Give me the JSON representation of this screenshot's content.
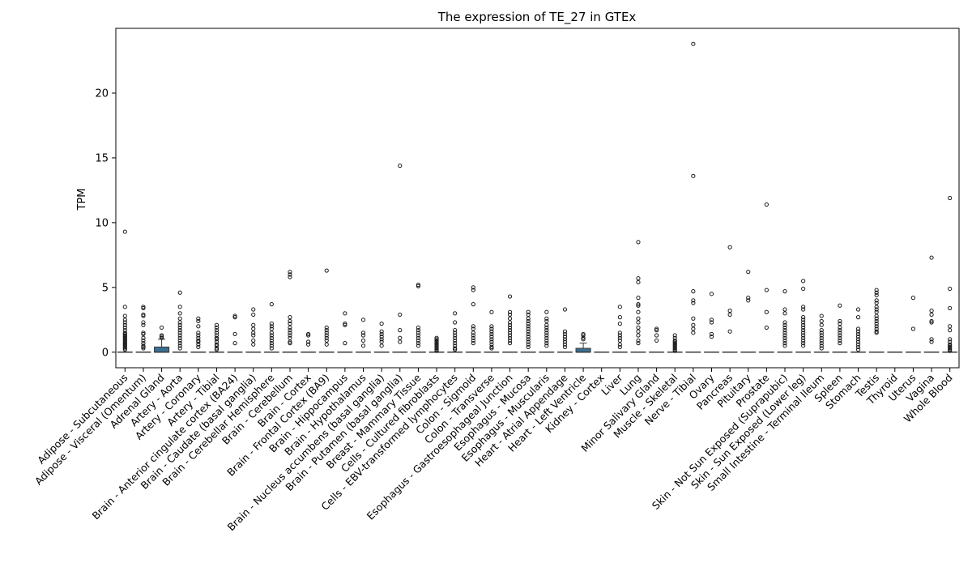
{
  "chart_data": {
    "type": "box",
    "title": "The expression of TE_27 in GTEx",
    "xlabel": "",
    "ylabel": "TPM",
    "ylim": [
      -1.2,
      25
    ],
    "yticks": [
      0,
      5,
      10,
      15,
      20
    ],
    "grid": false,
    "box_color": "#3a6f92",
    "categories": [
      "Adipose - Subcutaneous",
      "Adipose - Visceral (Omentum)",
      "Adrenal Gland",
      "Artery - Aorta",
      "Artery - Coronary",
      "Artery - Tibial",
      "Brain - Anterior cingulate cortex (BA24)",
      "Brain - Caudate (basal ganglia)",
      "Brain - Cerebellar Hemisphere",
      "Brain - Cerebellum",
      "Brain - Cortex",
      "Brain - Frontal Cortex (BA9)",
      "Brain - Hippocampus",
      "Brain - Hypothalamus",
      "Brain - Nucleus accumbens (basal ganglia)",
      "Brain - Putamen (basal ganglia)",
      "Breast - Mammary Tissue",
      "Cells - Cultured fibroblasts",
      "Cells - EBV-transformed lymphocytes",
      "Colon - Sigmoid",
      "Colon - Transverse",
      "Esophagus - Gastroesophageal Junction",
      "Esophagus - Mucosa",
      "Esophagus - Muscularis",
      "Heart - Atrial Appendage",
      "Heart - Left Ventricle",
      "Kidney - Cortex",
      "Liver",
      "Lung",
      "Minor Salivary Gland",
      "Muscle - Skeletal",
      "Nerve - Tibial",
      "Ovary",
      "Pancreas",
      "Pituitary",
      "Prostate",
      "Skin - Not Sun Exposed (Suprapubic)",
      "Skin - Sun Exposed (Lower leg)",
      "Small Intestine - Terminal Ileum",
      "Spleen",
      "Stomach",
      "Testis",
      "Thyroid",
      "Uterus",
      "Vagina",
      "Whole Blood"
    ],
    "series": [
      {
        "q1": 0,
        "median": 0,
        "q3": 0,
        "whisker_low": 0,
        "whisker_high": 0,
        "outliers": [
          9.3,
          3.5,
          2.8,
          2.5,
          2.3,
          2.1,
          1.9,
          1.7,
          1.5,
          1.4,
          1.3,
          1.2,
          1.1,
          1.0,
          0.9,
          0.8,
          0.7,
          0.6,
          0.5,
          0.4,
          0.3,
          0.2
        ]
      },
      {
        "q1": 0,
        "median": 0,
        "q3": 0,
        "whisker_low": 0,
        "whisker_high": 0,
        "outliers": [
          3.5,
          3.4,
          2.9,
          2.8,
          2.3,
          2.1,
          1.5,
          1.4,
          1.1,
          0.9,
          0.7,
          0.5,
          0.4,
          0.3
        ]
      },
      {
        "q1": 0,
        "median": 0,
        "q3": 0.4,
        "whisker_low": 0,
        "whisker_high": 1.0,
        "outliers": [
          1.9,
          1.3,
          1.2,
          1.1
        ]
      },
      {
        "q1": 0,
        "median": 0,
        "q3": 0,
        "whisker_low": 0,
        "whisker_high": 0,
        "outliers": [
          4.6,
          3.5,
          3.0,
          2.6,
          2.3,
          2.1,
          1.9,
          1.7,
          1.5,
          1.3,
          1.1,
          0.9,
          0.7,
          0.5,
          0.3
        ]
      },
      {
        "q1": 0,
        "median": 0,
        "q3": 0,
        "whisker_low": 0,
        "whisker_high": 0,
        "outliers": [
          2.6,
          2.4,
          2.0,
          1.5,
          1.3,
          1.1,
          0.9,
          0.8,
          0.6,
          0.4
        ]
      },
      {
        "q1": 0,
        "median": 0,
        "q3": 0,
        "whisker_low": 0,
        "whisker_high": 0,
        "outliers": [
          2.1,
          1.9,
          1.7,
          1.5,
          1.3,
          1.1,
          1.0,
          0.8,
          0.6,
          0.5,
          0.3,
          0.2
        ]
      },
      {
        "q1": 0,
        "median": 0,
        "q3": 0,
        "whisker_low": 0,
        "whisker_high": 0,
        "outliers": [
          2.8,
          2.7,
          1.4,
          0.7
        ]
      },
      {
        "q1": 0,
        "median": 0,
        "q3": 0,
        "whisker_low": 0,
        "whisker_high": 0,
        "outliers": [
          3.3,
          2.9,
          2.1,
          1.8,
          1.5,
          1.3,
          0.9,
          0.6
        ]
      },
      {
        "q1": 0,
        "median": 0,
        "q3": 0,
        "whisker_low": 0,
        "whisker_high": 0,
        "outliers": [
          3.7,
          2.2,
          2.0,
          1.8,
          1.5,
          1.3,
          1.1,
          0.9,
          0.7,
          0.5,
          0.3
        ]
      },
      {
        "q1": 0,
        "median": 0,
        "q3": 0,
        "whisker_low": 0,
        "whisker_high": 0,
        "outliers": [
          6.2,
          6.0,
          5.8,
          2.7,
          2.4,
          2.2,
          1.9,
          1.7,
          1.5,
          1.3,
          1.1,
          0.8,
          0.7
        ]
      },
      {
        "q1": 0,
        "median": 0,
        "q3": 0,
        "whisker_low": 0,
        "whisker_high": 0,
        "outliers": [
          1.4,
          1.3,
          0.8,
          0.6
        ]
      },
      {
        "q1": 0,
        "median": 0,
        "q3": 0,
        "whisker_low": 0,
        "whisker_high": 0,
        "outliers": [
          6.3,
          1.9,
          1.7,
          1.5,
          1.3,
          1.1,
          0.9,
          0.6
        ]
      },
      {
        "q1": 0,
        "median": 0,
        "q3": 0,
        "whisker_low": 0,
        "whisker_high": 0,
        "outliers": [
          3.0,
          2.2,
          2.1,
          0.7
        ]
      },
      {
        "q1": 0,
        "median": 0,
        "q3": 0,
        "whisker_low": 0,
        "whisker_high": 0,
        "outliers": [
          2.5,
          1.5,
          1.3,
          0.9,
          0.5
        ]
      },
      {
        "q1": 0,
        "median": 0,
        "q3": 0,
        "whisker_low": 0,
        "whisker_high": 0,
        "outliers": [
          2.2,
          1.6,
          1.4,
          1.2,
          1.0,
          0.8,
          0.5
        ]
      },
      {
        "q1": 0,
        "median": 0,
        "q3": 0,
        "whisker_low": 0,
        "whisker_high": 0,
        "outliers": [
          14.4,
          2.9,
          1.7,
          1.1,
          0.8
        ]
      },
      {
        "q1": 0,
        "median": 0,
        "q3": 0,
        "whisker_low": 0,
        "whisker_high": 0,
        "outliers": [
          5.2,
          5.1,
          1.9,
          1.7,
          1.5,
          1.3,
          1.1,
          0.9,
          0.7,
          0.5
        ]
      },
      {
        "q1": 0,
        "median": 0,
        "q3": 0,
        "whisker_low": 0,
        "whisker_high": 0,
        "outliers": [
          1.1,
          1.0,
          0.9,
          0.8,
          0.7,
          0.6,
          0.5,
          0.4,
          0.3,
          0.2,
          0.1
        ]
      },
      {
        "q1": 0,
        "median": 0,
        "q3": 0,
        "whisker_low": 0,
        "whisker_high": 0,
        "outliers": [
          3.0,
          2.3,
          1.7,
          1.5,
          1.3,
          1.1,
          0.9,
          0.7,
          0.5,
          0.3,
          0.2
        ]
      },
      {
        "q1": 0,
        "median": 0,
        "q3": 0,
        "whisker_low": 0,
        "whisker_high": 0,
        "outliers": [
          5.0,
          4.8,
          3.7,
          2.0,
          1.8,
          1.5,
          1.3,
          1.1,
          0.9,
          0.7
        ]
      },
      {
        "q1": 0,
        "median": 0,
        "q3": 0,
        "whisker_low": 0,
        "whisker_high": 0,
        "outliers": [
          3.1,
          2.0,
          1.8,
          1.6,
          1.4,
          1.2,
          1.0,
          0.8,
          0.6,
          0.4,
          0.3
        ]
      },
      {
        "q1": 0,
        "median": 0,
        "q3": 0,
        "whisker_low": 0,
        "whisker_high": 0,
        "outliers": [
          4.3,
          3.1,
          2.9,
          2.6,
          2.3,
          2.1,
          1.9,
          1.7,
          1.5,
          1.3,
          1.1,
          0.9,
          0.7
        ]
      },
      {
        "q1": 0,
        "median": 0,
        "q3": 0,
        "whisker_low": 0,
        "whisker_high": 0,
        "outliers": [
          3.1,
          2.9,
          2.6,
          2.4,
          2.2,
          2.0,
          1.8,
          1.6,
          1.4,
          1.2,
          1.0,
          0.8,
          0.6,
          0.4
        ]
      },
      {
        "q1": 0,
        "median": 0,
        "q3": 0,
        "whisker_low": 0,
        "whisker_high": 0,
        "outliers": [
          3.1,
          2.6,
          2.4,
          2.1,
          1.9,
          1.7,
          1.5,
          1.3,
          1.1,
          0.9,
          0.7,
          0.5
        ]
      },
      {
        "q1": 0,
        "median": 0,
        "q3": 0,
        "whisker_low": 0,
        "whisker_high": 0,
        "outliers": [
          3.3,
          1.6,
          1.4,
          1.2,
          1.0,
          0.8,
          0.6,
          0.4
        ]
      },
      {
        "q1": 0,
        "median": 0,
        "q3": 0.3,
        "whisker_low": 0,
        "whisker_high": 0.7,
        "outliers": [
          1.4,
          1.3,
          1.1,
          1.0
        ]
      },
      {
        "q1": 0,
        "median": 0,
        "q3": 0,
        "whisker_low": 0,
        "whisker_high": 0,
        "outliers": []
      },
      {
        "q1": 0,
        "median": 0,
        "q3": 0,
        "whisker_low": 0,
        "whisker_high": 0,
        "outliers": [
          3.5,
          2.7,
          2.2,
          1.5,
          1.3,
          1.1,
          0.9,
          0.6,
          0.4
        ]
      },
      {
        "q1": 0,
        "median": 0,
        "q3": 0,
        "whisker_low": 0,
        "whisker_high": 0,
        "outliers": [
          8.5,
          5.7,
          5.4,
          4.2,
          3.7,
          3.6,
          3.1,
          2.6,
          2.3,
          1.9,
          1.6,
          1.3,
          0.9,
          0.7
        ]
      },
      {
        "q1": 0,
        "median": 0,
        "q3": 0,
        "whisker_low": 0,
        "whisker_high": 0,
        "outliers": [
          1.8,
          1.7,
          1.3,
          0.9
        ]
      },
      {
        "q1": 0,
        "median": 0,
        "q3": 0,
        "whisker_low": 0,
        "whisker_high": 0,
        "outliers": [
          1.3,
          1.1,
          0.9,
          0.8,
          0.7,
          0.6,
          0.5,
          0.4,
          0.3,
          0.2,
          0.1
        ]
      },
      {
        "q1": 0,
        "median": 0,
        "q3": 0,
        "whisker_low": 0,
        "whisker_high": 0,
        "outliers": [
          23.8,
          13.6,
          4.7,
          4.0,
          3.8,
          2.6,
          2.1,
          1.8,
          1.5
        ]
      },
      {
        "q1": 0,
        "median": 0,
        "q3": 0,
        "whisker_low": 0,
        "whisker_high": 0,
        "outliers": [
          4.5,
          2.5,
          2.3,
          1.4,
          1.2
        ]
      },
      {
        "q1": 0,
        "median": 0,
        "q3": 0,
        "whisker_low": 0,
        "whisker_high": 0,
        "outliers": [
          8.1,
          3.2,
          2.9,
          1.6
        ]
      },
      {
        "q1": 0,
        "median": 0,
        "q3": 0,
        "whisker_low": 0,
        "whisker_high": 0,
        "outliers": [
          6.2,
          4.2,
          4.0
        ]
      },
      {
        "q1": 0,
        "median": 0,
        "q3": 0,
        "whisker_low": 0,
        "whisker_high": 0,
        "outliers": [
          11.4,
          4.8,
          3.1,
          1.9
        ]
      },
      {
        "q1": 0,
        "median": 0,
        "q3": 0,
        "whisker_low": 0,
        "whisker_high": 0,
        "outliers": [
          4.7,
          3.3,
          3.0,
          2.3,
          2.1,
          1.9,
          1.7,
          1.5,
          1.3,
          1.1,
          0.9,
          0.7,
          0.5
        ]
      },
      {
        "q1": 0,
        "median": 0,
        "q3": 0,
        "whisker_low": 0,
        "whisker_high": 0,
        "outliers": [
          5.5,
          4.9,
          3.5,
          3.3,
          2.7,
          2.5,
          2.3,
          2.1,
          1.9,
          1.7,
          1.5,
          1.3,
          1.1,
          0.9,
          0.7,
          0.5
        ]
      },
      {
        "q1": 0,
        "median": 0,
        "q3": 0,
        "whisker_low": 0,
        "whisker_high": 0,
        "outliers": [
          2.8,
          2.4,
          2.1,
          1.7,
          1.5,
          1.3,
          1.1,
          0.9,
          0.7,
          0.5,
          0.3
        ]
      },
      {
        "q1": 0,
        "median": 0,
        "q3": 0,
        "whisker_low": 0,
        "whisker_high": 0,
        "outliers": [
          3.6,
          2.4,
          2.2,
          1.9,
          1.7,
          1.5,
          1.3,
          1.1,
          0.9,
          0.7
        ]
      },
      {
        "q1": 0,
        "median": 0,
        "q3": 0,
        "whisker_low": 0,
        "whisker_high": 0,
        "outliers": [
          3.3,
          2.7,
          1.8,
          1.6,
          1.4,
          1.2,
          1.0,
          0.8,
          0.6,
          0.4,
          0.2
        ]
      },
      {
        "q1": 0,
        "median": 0,
        "q3": 0,
        "whisker_low": 0,
        "whisker_high": 0,
        "outliers": [
          4.8,
          4.6,
          4.4,
          4.0,
          3.8,
          3.5,
          3.3,
          3.1,
          2.8,
          2.6,
          2.4,
          2.2,
          2.0,
          1.8,
          1.6,
          1.5
        ]
      },
      {
        "q1": 0,
        "median": 0,
        "q3": 0,
        "whisker_low": 0,
        "whisker_high": 0,
        "outliers": []
      },
      {
        "q1": 0,
        "median": 0,
        "q3": 0,
        "whisker_low": 0,
        "whisker_high": 0,
        "outliers": [
          4.2,
          1.8
        ]
      },
      {
        "q1": 0,
        "median": 0,
        "q3": 0,
        "whisker_low": 0,
        "whisker_high": 0,
        "outliers": [
          7.3,
          3.2,
          2.9,
          2.4,
          2.3,
          1.0,
          0.8
        ]
      },
      {
        "q1": 0,
        "median": 0,
        "q3": 0,
        "whisker_low": 0,
        "whisker_high": 0,
        "outliers": [
          11.9,
          4.9,
          3.4,
          2.0,
          1.7,
          1.0,
          0.8,
          0.6,
          0.5,
          0.4,
          0.3,
          0.2,
          0.1
        ]
      }
    ]
  }
}
